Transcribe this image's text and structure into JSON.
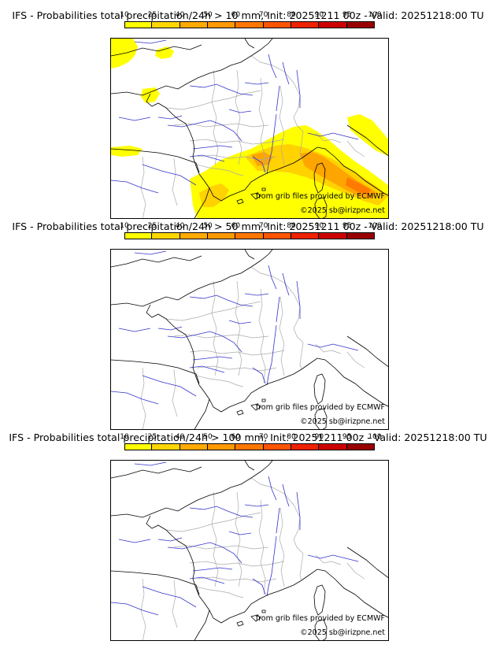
{
  "panels": [
    {
      "title": "IFS - Probabilities total precipitation/24h > 10 mm, Init: 20251211 00z - Valid: 20251218:00 TU",
      "threshold_mm": 10,
      "has_precip": true
    },
    {
      "title": "IFS - Probabilities total precipitation/24h > 50 mm, Init: 20251211 00z - Valid: 20251218:00 TU",
      "threshold_mm": 50,
      "has_precip": false
    },
    {
      "title": "IFS - Probabilities total precipitation/24h > 100 mm, Init: 20251211 00z - Valid: 20251218:00 TU",
      "threshold_mm": 100,
      "has_precip": false
    }
  ],
  "colorbar": {
    "labels": [
      "10",
      "25",
      "40",
      "50",
      "60",
      "70",
      "80",
      "90",
      "95",
      "100"
    ],
    "colors": [
      "#ffff00",
      "#ffd700",
      "#ffaa00",
      "#ff9900",
      "#ff7700",
      "#ff5500",
      "#ee2200",
      "#cc0000",
      "#990000",
      "#660000"
    ]
  },
  "credits": {
    "source": "from grib files provided by ECMWF",
    "copyright": "©2025 sb@irizpne.net"
  },
  "colors": {
    "rivers": "#3333cc",
    "borders": "#aaaaaa",
    "coast": "#000000",
    "precip_low": "#ffff00",
    "precip_mid": "#ffd200",
    "precip_high": "#ffa500",
    "precip_top": "#ff7a00"
  }
}
